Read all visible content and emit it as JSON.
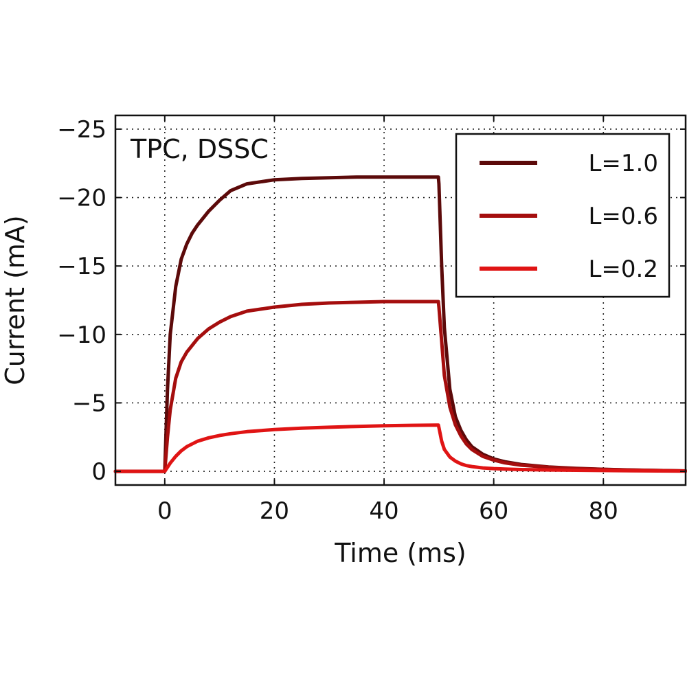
{
  "chart_data": {
    "type": "line",
    "annotation": "TPC, DSSC",
    "xlabel": "Time (ms)",
    "ylabel": "Current (mA)",
    "xlim": [
      -9,
      95
    ],
    "ylim": [
      1,
      -26
    ],
    "xticks": [
      0,
      20,
      40,
      60,
      80
    ],
    "xtick_labels": [
      "0",
      "20",
      "40",
      "60",
      "80"
    ],
    "yticks": [
      0,
      -5,
      -10,
      -15,
      -20,
      -25
    ],
    "ytick_labels": [
      "0",
      "−5",
      "−10",
      "−15",
      "−20",
      "−25"
    ],
    "y_inverted": true,
    "grid": true,
    "legend_position": "top-right",
    "series": [
      {
        "name": "L=1.0",
        "color": "#5c0a0a",
        "x": [
          -9,
          0,
          0.5,
          1,
          2,
          3,
          4,
          5,
          6,
          8,
          10,
          12,
          15,
          20,
          25,
          30,
          35,
          40,
          45,
          49.9,
          50,
          50.5,
          51,
          52,
          53,
          54,
          55,
          56,
          58,
          60,
          62,
          65,
          70,
          75,
          80,
          85,
          90,
          95
        ],
        "y": [
          0,
          0,
          -6.0,
          -10.0,
          -13.5,
          -15.5,
          -16.6,
          -17.4,
          -18.0,
          -19.0,
          -19.8,
          -20.5,
          -21.0,
          -21.3,
          -21.4,
          -21.45,
          -21.5,
          -21.5,
          -21.5,
          -21.5,
          -21.0,
          -15.0,
          -10.5,
          -6.0,
          -4.0,
          -3.0,
          -2.3,
          -1.8,
          -1.25,
          -0.9,
          -0.7,
          -0.5,
          -0.32,
          -0.22,
          -0.15,
          -0.1,
          -0.06,
          -0.03
        ]
      },
      {
        "name": "L=0.6",
        "color": "#a50e0e",
        "x": [
          -9,
          0,
          0.5,
          1,
          2,
          3,
          4,
          5,
          6,
          8,
          10,
          12,
          15,
          20,
          25,
          30,
          35,
          40,
          45,
          49.9,
          50,
          50.5,
          51,
          52,
          53,
          54,
          55,
          56,
          58,
          60,
          62,
          65,
          70,
          75,
          80,
          85,
          90,
          95
        ],
        "y": [
          0,
          0,
          -2.5,
          -4.5,
          -6.8,
          -8.0,
          -8.7,
          -9.2,
          -9.7,
          -10.4,
          -10.9,
          -11.3,
          -11.7,
          -12.0,
          -12.2,
          -12.3,
          -12.35,
          -12.4,
          -12.4,
          -12.4,
          -12.0,
          -9.5,
          -7.0,
          -4.7,
          -3.4,
          -2.6,
          -2.0,
          -1.6,
          -1.1,
          -0.82,
          -0.62,
          -0.45,
          -0.3,
          -0.2,
          -0.14,
          -0.09,
          -0.06,
          -0.03
        ]
      },
      {
        "name": "L=0.2",
        "color": "#e01414",
        "x": [
          -9,
          0,
          0.5,
          1,
          2,
          3,
          4,
          5,
          6,
          8,
          10,
          12,
          15,
          20,
          25,
          30,
          35,
          40,
          45,
          49.9,
          50,
          50.5,
          51,
          52,
          53,
          54,
          55,
          56,
          58,
          60,
          62,
          65,
          70,
          75,
          80,
          85,
          90,
          95
        ],
        "y": [
          0,
          0,
          -0.3,
          -0.6,
          -1.1,
          -1.5,
          -1.8,
          -2.0,
          -2.2,
          -2.45,
          -2.62,
          -2.75,
          -2.9,
          -3.05,
          -3.15,
          -3.22,
          -3.28,
          -3.33,
          -3.36,
          -3.38,
          -3.2,
          -2.2,
          -1.6,
          -1.05,
          -0.75,
          -0.55,
          -0.42,
          -0.35,
          -0.25,
          -0.2,
          -0.17,
          -0.13,
          -0.1,
          -0.08,
          -0.06,
          -0.04,
          -0.03,
          -0.02
        ]
      }
    ]
  }
}
